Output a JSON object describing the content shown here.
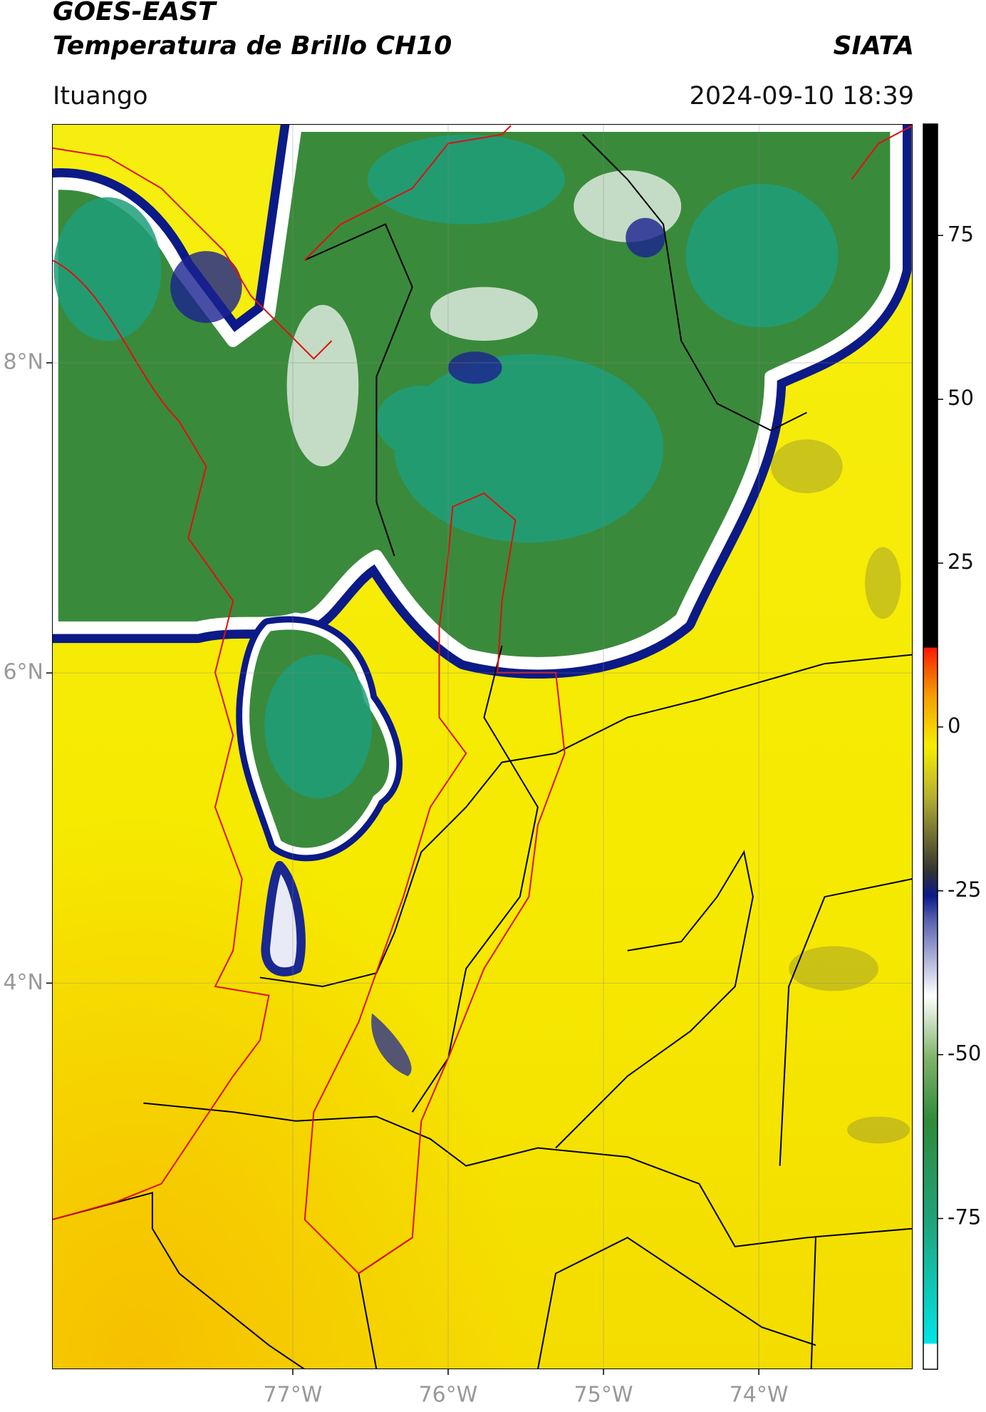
{
  "header": {
    "title": "GOES-EAST",
    "subtitle": "Temperatura de Brillo CH10",
    "source": "SIATA",
    "location": "Ituango",
    "datetime": "2024-09-10 18:39"
  },
  "map": {
    "xlim": [
      -78.55,
      -73.01
    ],
    "ylim": [
      1.51,
      9.54
    ],
    "xticks": [
      {
        "value": -77,
        "label": "77°W"
      },
      {
        "value": -76,
        "label": "76°W"
      },
      {
        "value": -75,
        "label": "75°W"
      },
      {
        "value": -74,
        "label": "74°W"
      }
    ],
    "yticks": [
      {
        "value": 8,
        "label": "8°N"
      },
      {
        "value": 6,
        "label": "6°N"
      },
      {
        "value": 4,
        "label": "4°N"
      }
    ]
  },
  "colorbar": {
    "lim": [
      -98,
      92
    ],
    "ticks": [
      -75,
      -50,
      -25,
      0,
      25,
      50,
      75
    ]
  }
}
